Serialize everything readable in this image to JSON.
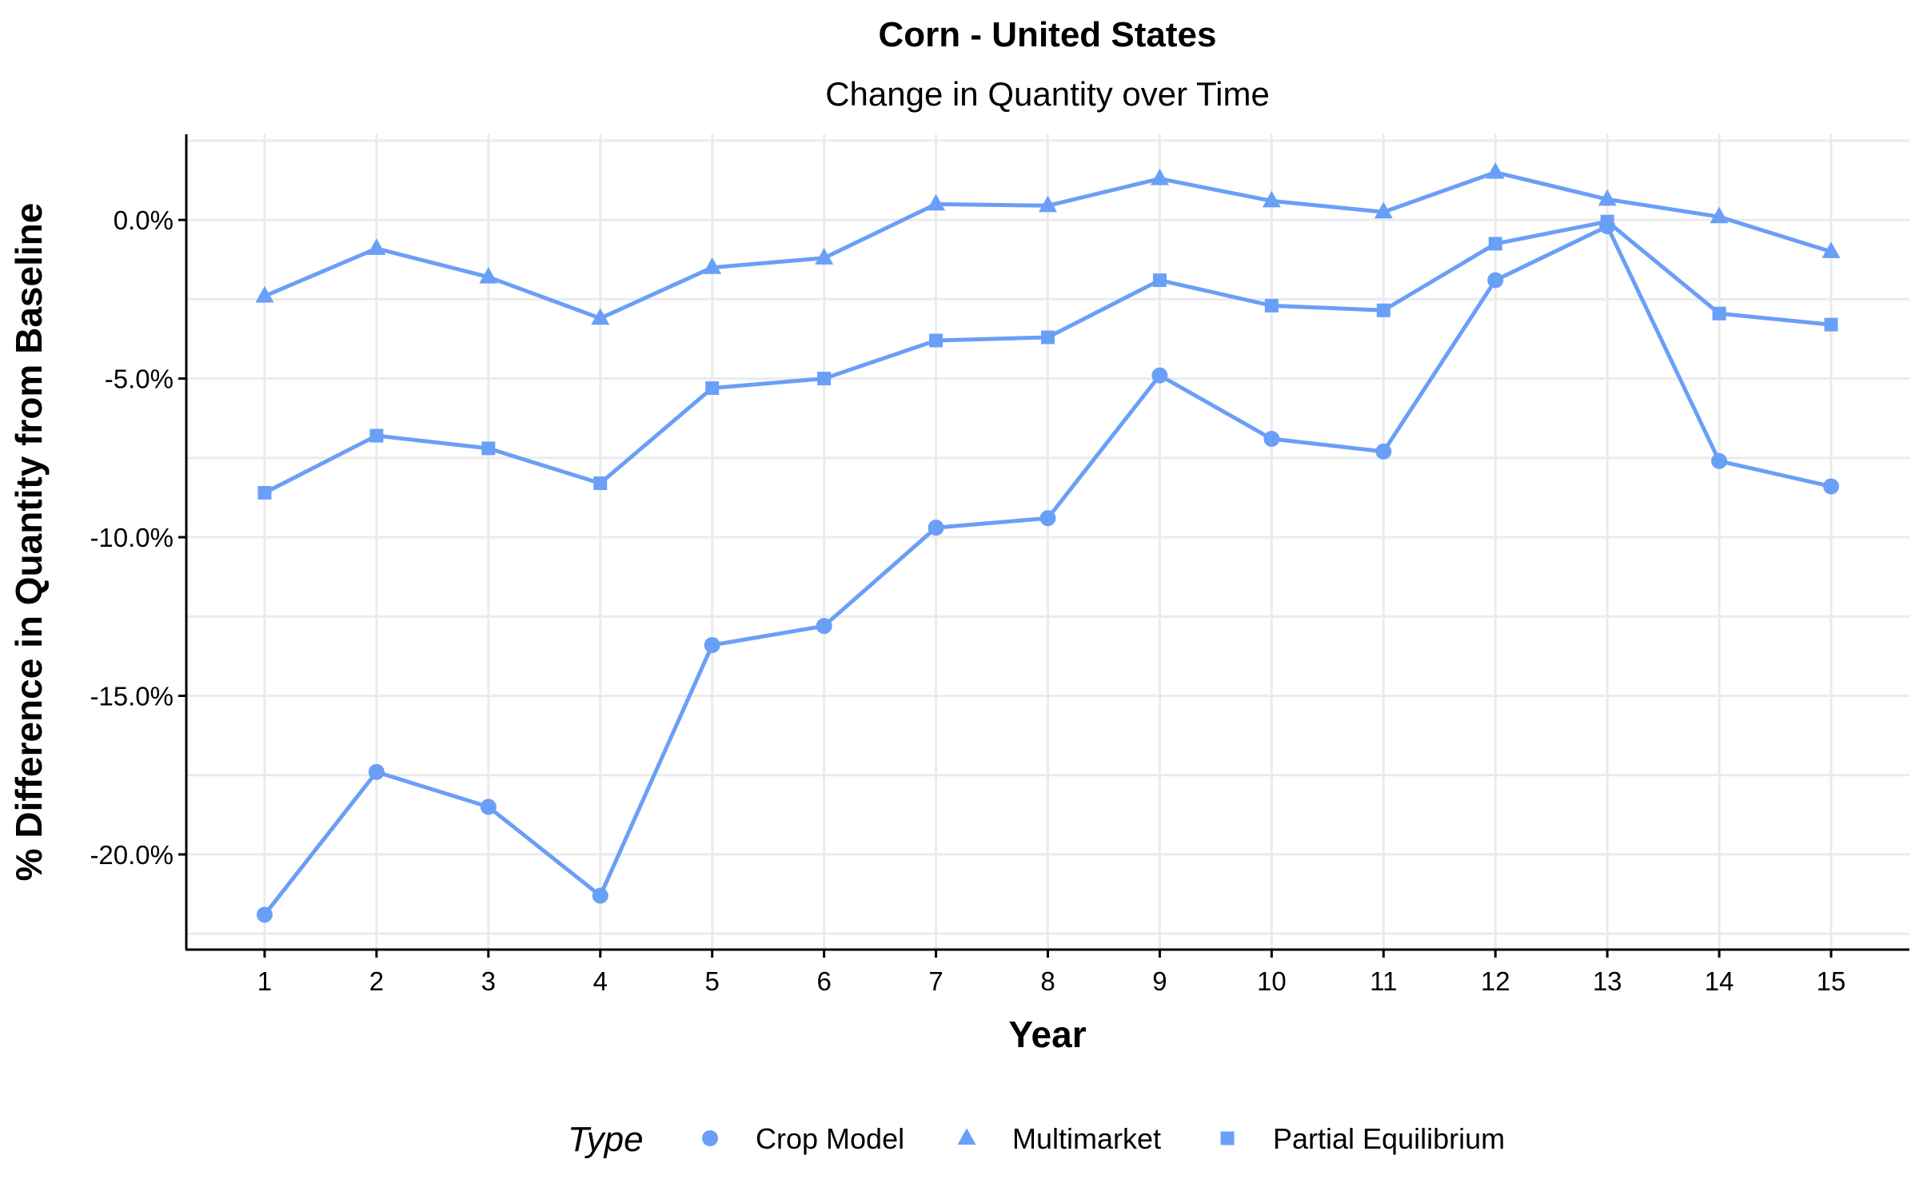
{
  "chart_data": {
    "type": "line",
    "title": "Corn - United States",
    "subtitle": "Change in Quantity over Time",
    "xlabel": "Year",
    "ylabel": "% Difference in Quantity from Baseline",
    "x": [
      1,
      2,
      3,
      4,
      5,
      6,
      7,
      8,
      9,
      10,
      11,
      12,
      13,
      14,
      15
    ],
    "x_tick_labels": [
      "1",
      "2",
      "3",
      "4",
      "5",
      "6",
      "7",
      "8",
      "9",
      "10",
      "11",
      "12",
      "13",
      "14",
      "15"
    ],
    "ylim": [
      -23.0,
      2.7
    ],
    "y_ticks": [
      0,
      -5,
      -10,
      -15,
      -20
    ],
    "y_tick_labels": [
      "0.0%",
      "-5.0%",
      "-10.0%",
      "-15.0%",
      "-20.0%"
    ],
    "grid": true,
    "legend_title": "Type",
    "legend_position": "bottom",
    "series_color": "#6a9ff7",
    "series": [
      {
        "name": "Crop Model",
        "marker": "circle",
        "values": [
          -21.9,
          -17.4,
          -18.5,
          -21.3,
          -13.4,
          -12.8,
          -9.7,
          -9.4,
          -4.9,
          -6.9,
          -7.3,
          -1.9,
          -0.2,
          -7.6,
          -8.4
        ]
      },
      {
        "name": "Multimarket",
        "marker": "triangle",
        "values": [
          -2.4,
          -0.9,
          -1.8,
          -3.1,
          -1.5,
          -1.2,
          0.5,
          0.45,
          1.3,
          0.6,
          0.25,
          1.5,
          0.65,
          0.1,
          -1.0
        ]
      },
      {
        "name": "Partial Equilibrium",
        "marker": "square",
        "values": [
          -8.6,
          -6.8,
          -7.2,
          -8.3,
          -5.3,
          -5.0,
          -3.8,
          -3.7,
          -1.9,
          -2.7,
          -2.85,
          -0.75,
          -0.05,
          -2.95,
          -3.3
        ]
      }
    ]
  }
}
